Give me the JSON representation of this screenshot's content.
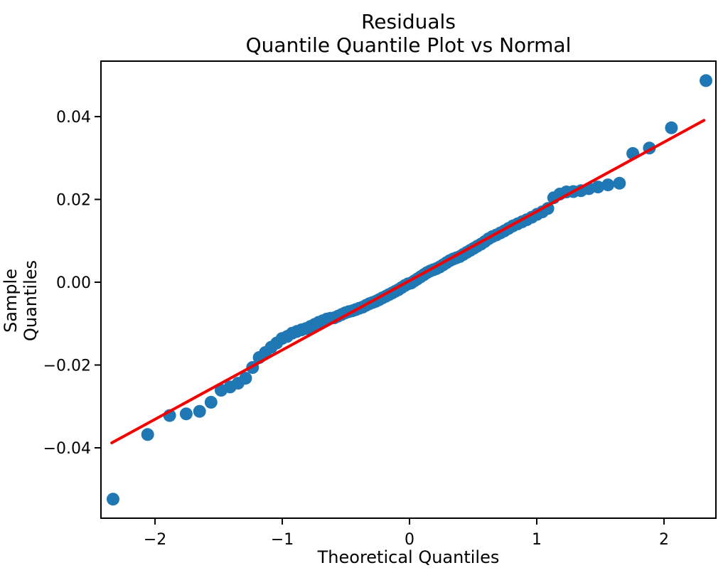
{
  "chart_data": {
    "type": "scatter",
    "title": "Residuals",
    "subtitle": "Quantile Quantile Plot vs Normal",
    "xlabel": "Theoretical Quantiles",
    "ylabel": "Sample Quantiles",
    "xlim": [
      -2.425,
      2.408
    ],
    "ylim": [
      -0.057,
      0.0534
    ],
    "grid": false,
    "legend": "none",
    "x_ticks": {
      "values": [
        -2,
        -1,
        0,
        1,
        2
      ],
      "labels": [
        "−2",
        "−1",
        "0",
        "1",
        "2"
      ]
    },
    "y_ticks": {
      "values": [
        -0.04,
        -0.02,
        0.0,
        0.02,
        0.04
      ],
      "labels": [
        "−0.04",
        "−0.02",
        "0.00",
        "0.02",
        "0.04"
      ]
    },
    "marker_color": "#1f77b4",
    "marker_radius": 9,
    "line_color": "#f40000",
    "line_width": 4,
    "axis_color": "#000000",
    "series": [
      {
        "name": "sample-vs-theoretical-quantiles",
        "x": [
          -2.33,
          -2.058,
          -1.885,
          -1.755,
          -1.65,
          -1.56,
          -1.481,
          -1.41,
          -1.347,
          -1.288,
          -1.233,
          -1.181,
          -1.133,
          -1.087,
          -1.044,
          -1.002,
          -0.961,
          -0.922,
          -0.885,
          -0.849,
          -0.813,
          -0.779,
          -0.746,
          -0.714,
          -0.682,
          -0.651,
          -0.621,
          -0.591,
          -0.562,
          -0.533,
          -0.505,
          -0.477,
          -0.449,
          -0.422,
          -0.395,
          -0.368,
          -0.342,
          -0.316,
          -0.29,
          -0.264,
          -0.238,
          -0.213,
          -0.187,
          -0.162,
          -0.137,
          -0.112,
          -0.087,
          -0.062,
          -0.037,
          -0.012,
          0.012,
          0.037,
          0.062,
          0.087,
          0.112,
          0.137,
          0.162,
          0.187,
          0.213,
          0.238,
          0.264,
          0.29,
          0.316,
          0.342,
          0.368,
          0.395,
          0.422,
          0.449,
          0.477,
          0.505,
          0.533,
          0.562,
          0.591,
          0.621,
          0.651,
          0.682,
          0.714,
          0.746,
          0.779,
          0.813,
          0.849,
          0.885,
          0.922,
          0.961,
          1.002,
          1.044,
          1.087,
          1.133,
          1.181,
          1.233,
          1.288,
          1.347,
          1.41,
          1.481,
          1.56,
          1.65,
          1.755,
          1.885,
          2.058,
          2.33
        ],
        "y": [
          -0.0524,
          -0.0368,
          -0.0322,
          -0.0318,
          -0.0312,
          -0.029,
          -0.0261,
          -0.0253,
          -0.0244,
          -0.0232,
          -0.0206,
          -0.0182,
          -0.017,
          -0.0157,
          -0.0147,
          -0.0136,
          -0.0131,
          -0.0123,
          -0.0119,
          -0.0115,
          -0.0112,
          -0.0107,
          -0.0102,
          -0.0097,
          -0.0093,
          -0.0089,
          -0.0087,
          -0.0086,
          -0.0082,
          -0.0078,
          -0.0074,
          -0.0071,
          -0.0069,
          -0.0066,
          -0.0063,
          -0.006,
          -0.0056,
          -0.0052,
          -0.0049,
          -0.0046,
          -0.0042,
          -0.0038,
          -0.0034,
          -0.003,
          -0.0026,
          -0.0022,
          -0.0018,
          -0.0013,
          -0.0008,
          -0.0004,
          -0.0002,
          0.0003,
          0.0008,
          0.0013,
          0.0018,
          0.0023,
          0.0027,
          0.003,
          0.0033,
          0.0037,
          0.0042,
          0.0047,
          0.0052,
          0.0056,
          0.0059,
          0.0062,
          0.0067,
          0.0072,
          0.0077,
          0.0082,
          0.0087,
          0.0092,
          0.0098,
          0.0105,
          0.011,
          0.0114,
          0.0119,
          0.0124,
          0.013,
          0.0136,
          0.0141,
          0.0146,
          0.0151,
          0.0157,
          0.0164,
          0.017,
          0.0178,
          0.0204,
          0.0213,
          0.0218,
          0.0219,
          0.0221,
          0.0226,
          0.023,
          0.0235,
          0.0239,
          0.0311,
          0.0324,
          0.0373,
          0.0487
        ]
      }
    ],
    "fit_line": {
      "name": "normal-reference-line",
      "x": [
        -2.34,
        2.315
      ],
      "y": [
        -0.0388,
        0.0391
      ]
    }
  }
}
